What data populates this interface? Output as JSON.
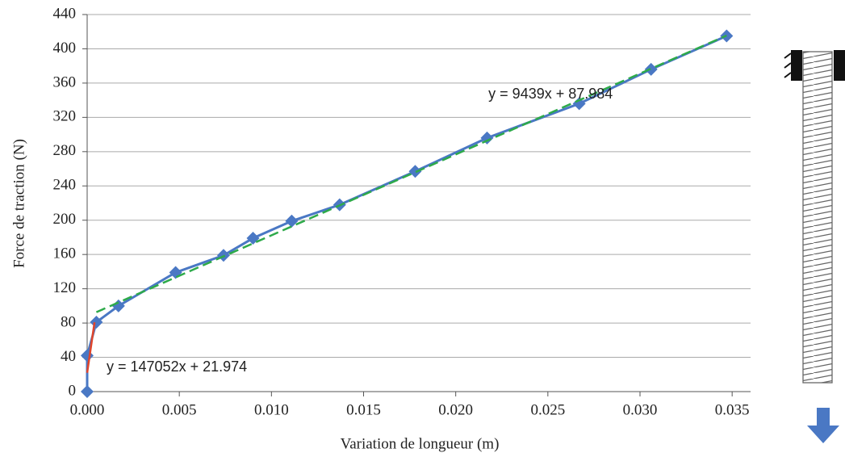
{
  "chart_data": {
    "type": "line",
    "x_label": "Variation de longueur (m)",
    "y_label": "Force de traction (N)",
    "x": [
      0,
      0,
      0.0005,
      0.0017,
      0.0048,
      0.0074,
      0.009,
      0.0111,
      0.0137,
      0.0178,
      0.0217,
      0.0267,
      0.0306,
      0.0347
    ],
    "series": [
      {
        "color": "#4a78c4",
        "values": [
          0,
          42,
          81,
          100,
          139,
          159,
          179,
          199,
          218,
          257,
          296,
          336,
          376,
          415
        ]
      }
    ],
    "trendlines": [
      {
        "label": "y = 147052x + 21.974",
        "color": "#e0452b",
        "dashed": false,
        "x": [
          0,
          0.0004
        ],
        "values": [
          21.974,
          80.8
        ]
      },
      {
        "label": "y = 9439x + 87.984",
        "color": "#2eaa4a",
        "dashed": true,
        "x": [
          0.0005,
          0.0347
        ],
        "values": [
          92.7,
          415.5
        ]
      }
    ],
    "xlim": [
      0,
      0.036
    ],
    "ylim": [
      0,
      440
    ],
    "xticks": [
      {
        "value": 0,
        "label": "0.000"
      },
      {
        "value": 0.005,
        "label": "0.005"
      },
      {
        "value": 0.01,
        "label": "0.010"
      },
      {
        "value": 0.015,
        "label": "0.015"
      },
      {
        "value": 0.02,
        "label": "0.020"
      },
      {
        "value": 0.025,
        "label": "0.025"
      },
      {
        "value": 0.03,
        "label": "0.030"
      },
      {
        "value": 0.035,
        "label": "0.035"
      }
    ],
    "yticks": [
      0,
      40,
      80,
      120,
      160,
      200,
      240,
      280,
      320,
      360,
      400,
      440
    ],
    "grid": true
  }
}
